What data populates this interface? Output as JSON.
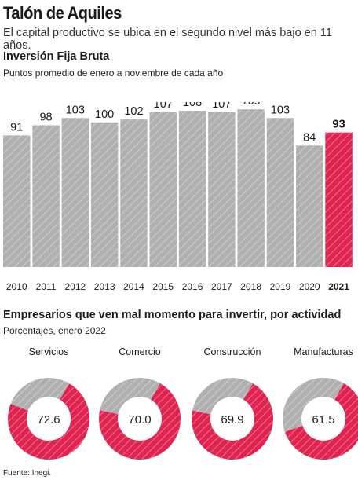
{
  "header": {
    "title": "Talón de Aquiles",
    "subtitle": "El capital productivo se ubica en el segundo nivel más bajo en 11 años."
  },
  "colors": {
    "bar_gray": "#b0b0b0",
    "highlight_red": "#e0244f",
    "text": "#1a1a1a"
  },
  "chart_data": [
    {
      "type": "bar",
      "title": "Inversión Fija Bruta",
      "subtitle": "Puntos promedio de enero a noviembre de cada año",
      "categories": [
        "2010",
        "2011",
        "2012",
        "2013",
        "2014",
        "2015",
        "2016",
        "2017",
        "2018",
        "2019",
        "2020",
        "2021"
      ],
      "values": [
        91,
        98,
        103,
        100,
        102,
        107,
        108,
        107,
        109,
        103,
        84,
        93
      ],
      "highlight": "2021",
      "ylim": [
        0,
        114
      ],
      "grid": false
    },
    {
      "type": "pie",
      "title": "Empresarios que ven mal momento para invertir, por actividad",
      "subtitle": "Porcentajes, enero 2022",
      "categories": [
        "Servicios",
        "Comercio",
        "Construcción",
        "Manufacturas"
      ],
      "values": [
        72.6,
        70.0,
        69.9,
        61.5
      ],
      "value_labels": [
        "72.6",
        "70.0",
        "69.9",
        "61.5"
      ]
    }
  ],
  "footer": {
    "source": "Fuente: Inegi."
  }
}
